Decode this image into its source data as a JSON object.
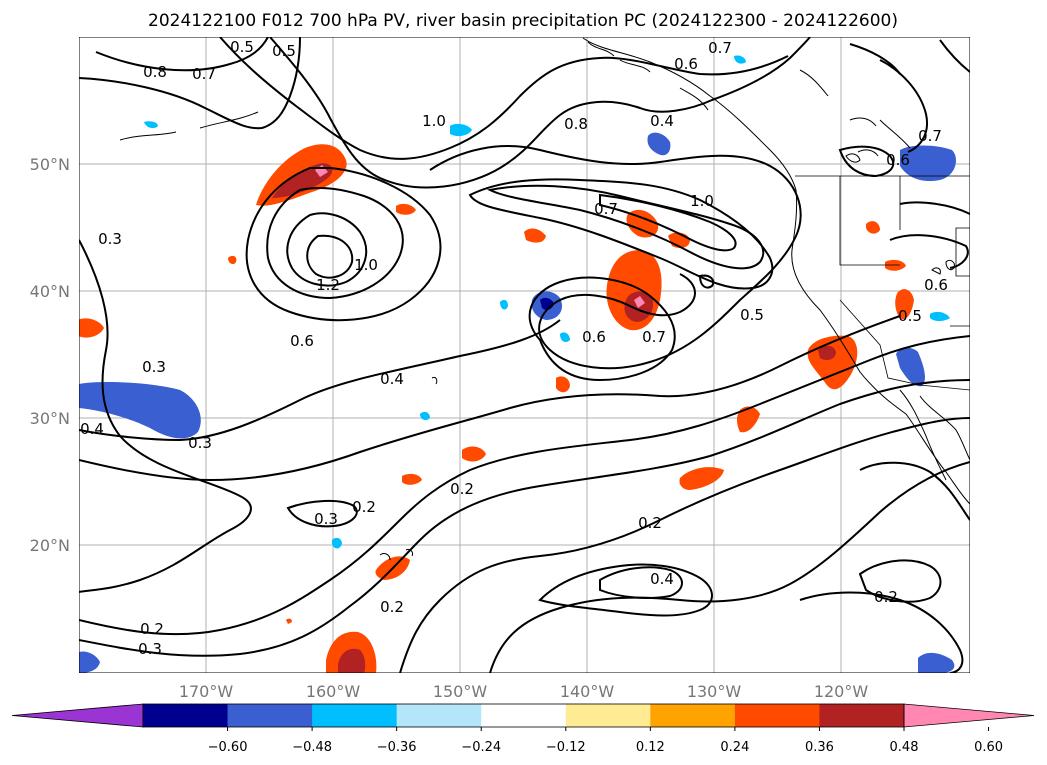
{
  "title": "2024122100 F012 700 hPa PV, river basin precipitation PC (2024122300 - 2024122600)",
  "map": {
    "lat_labels": [
      "50°N",
      "40°N",
      "30°N",
      "20°N"
    ],
    "lon_labels": [
      "170°W",
      "160°W",
      "150°W",
      "140°W",
      "130°W",
      "120°W"
    ],
    "contour_labels": [
      "0.8",
      "0.7",
      "0.5",
      "0.5",
      "0.7",
      "0.6",
      "0.4",
      "0.8",
      "1.0",
      "0.6",
      "0.7",
      "1.0",
      "0.3",
      "1.2",
      "1.0",
      "0.6",
      "0.4",
      "0.3",
      "0.4",
      "0.3",
      "0.6",
      "0.7",
      "0.5",
      "0.5",
      "0.6",
      "0.2",
      "0.2",
      "0.3",
      "0.2",
      "0.4",
      "0.2",
      "0.2",
      "0.3",
      "0.2",
      "0.7"
    ]
  },
  "colorbar": {
    "ticks": [
      "−0.60",
      "−0.48",
      "−0.36",
      "−0.24",
      "−0.12",
      "0.12",
      "0.24",
      "0.36",
      "0.48",
      "0.60"
    ],
    "colors": [
      "#9a34d2",
      "#000090",
      "#3a5fd0",
      "#00bfff",
      "#b4e6fa",
      "#ffffff",
      "#ffeb94",
      "#ffa300",
      "#ff4a00",
      "#b22222",
      "#ff87b2"
    ]
  }
}
